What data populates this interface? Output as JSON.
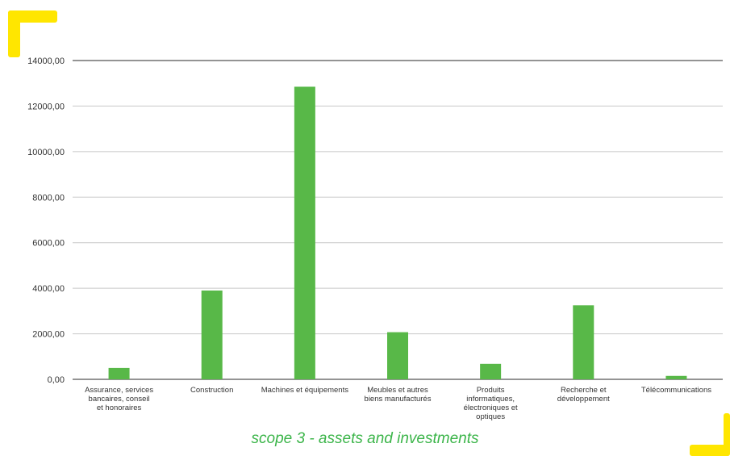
{
  "caption": "scope 3 - assets and investments",
  "colors": {
    "bar": "#58b848",
    "accent": "#ffe600",
    "caption": "#3cb54a",
    "grid": "#c8c8c8",
    "axis": "#555555",
    "text": "#333333"
  },
  "chart_data": {
    "type": "bar",
    "title": "",
    "xlabel": "",
    "ylabel": "",
    "ylim": [
      0,
      14000
    ],
    "y_ticks": [
      "0,00",
      "2000,00",
      "4000,00",
      "6000,00",
      "8000,00",
      "10000,00",
      "12000,00",
      "14000,00"
    ],
    "categories": [
      [
        "Assurance, services",
        "bancaires, conseil",
        "et honoraires"
      ],
      [
        "Construction"
      ],
      [
        "Machines et équipements"
      ],
      [
        "Meubles et autres",
        "biens manufacturés"
      ],
      [
        "Produits",
        "informatiques,",
        "électroniques et",
        "optiques"
      ],
      [
        "Recherche et",
        "développement"
      ],
      [
        "Télécommunications"
      ]
    ],
    "values": [
      500,
      3900,
      12850,
      2070,
      680,
      3250,
      150
    ],
    "grid": true
  }
}
